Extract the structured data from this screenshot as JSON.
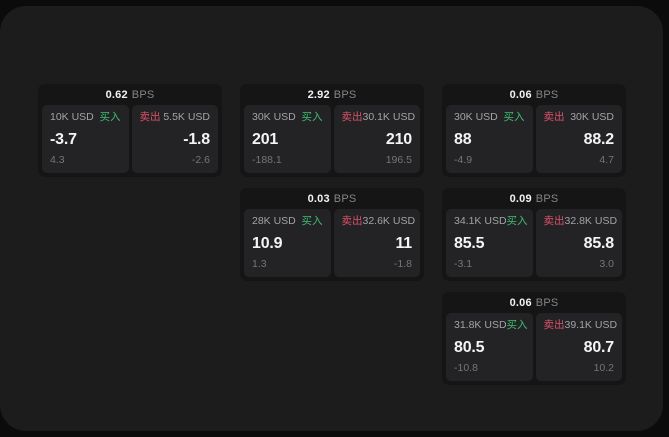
{
  "labels": {
    "buy": "买入",
    "sell": "卖出",
    "bps_unit": "BPS"
  },
  "colors": {
    "buy_green": "#3fbf73",
    "sell_red": "#dc5168",
    "page_bg": "#0b0b0c",
    "panel_bg": "#1c1c1d",
    "card_bg": "#151516",
    "tile_bg": "#232325"
  },
  "cards": [
    {
      "bps": "0.62",
      "buy": {
        "size": "10K USD",
        "value": "-3.7",
        "delta": "4.3"
      },
      "sell": {
        "size": "5.5K USD",
        "value": "-1.8",
        "delta": "-2.6"
      }
    },
    {
      "bps": "2.92",
      "buy": {
        "size": "30K USD",
        "value": "201",
        "delta": "-188.1"
      },
      "sell": {
        "size": "30.1K USD",
        "value": "210",
        "delta": "196.5"
      }
    },
    {
      "bps": "0.06",
      "buy": {
        "size": "30K USD",
        "value": "88",
        "delta": "-4.9"
      },
      "sell": {
        "size": "30K USD",
        "value": "88.2",
        "delta": "4.7"
      }
    },
    {
      "bps": "0.03",
      "buy": {
        "size": "28K USD",
        "value": "10.9",
        "delta": "1.3"
      },
      "sell": {
        "size": "32.6K USD",
        "value": "11",
        "delta": "-1.8"
      }
    },
    {
      "bps": "0.09",
      "buy": {
        "size": "34.1K USD",
        "value": "85.5",
        "delta": "-3.1"
      },
      "sell": {
        "size": "32.8K USD",
        "value": "85.8",
        "delta": "3.0"
      }
    },
    {
      "bps": "0.06",
      "buy": {
        "size": "31.8K USD",
        "value": "80.5",
        "delta": "-10.8"
      },
      "sell": {
        "size": "39.1K USD",
        "value": "80.7",
        "delta": "10.2"
      }
    }
  ]
}
